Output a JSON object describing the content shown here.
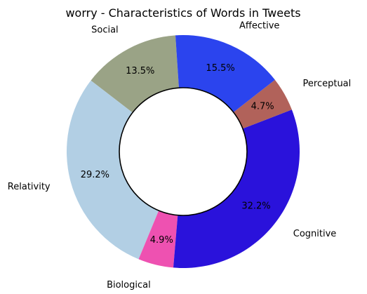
{
  "chart_data": {
    "type": "pie",
    "title": "worry - Characteristics of Words in Tweets",
    "donut": true,
    "slices": [
      {
        "label": "Social",
        "value": 13.5,
        "pct_label": "13.5%",
        "color": "#9aa386"
      },
      {
        "label": "Relativity",
        "value": 29.2,
        "pct_label": "29.2%",
        "color": "#b2cfe4"
      },
      {
        "label": "Biological",
        "value": 4.9,
        "pct_label": "4.9%",
        "color": "#ee51b1"
      },
      {
        "label": "Cognitive",
        "value": 32.2,
        "pct_label": "32.2%",
        "color": "#2a12db"
      },
      {
        "label": "Perceptual",
        "value": 4.7,
        "pct_label": "4.7%",
        "color": "#b1625a"
      },
      {
        "label": "Affective",
        "value": 15.5,
        "pct_label": "15.5%",
        "color": "#2b44ee"
      }
    ]
  }
}
